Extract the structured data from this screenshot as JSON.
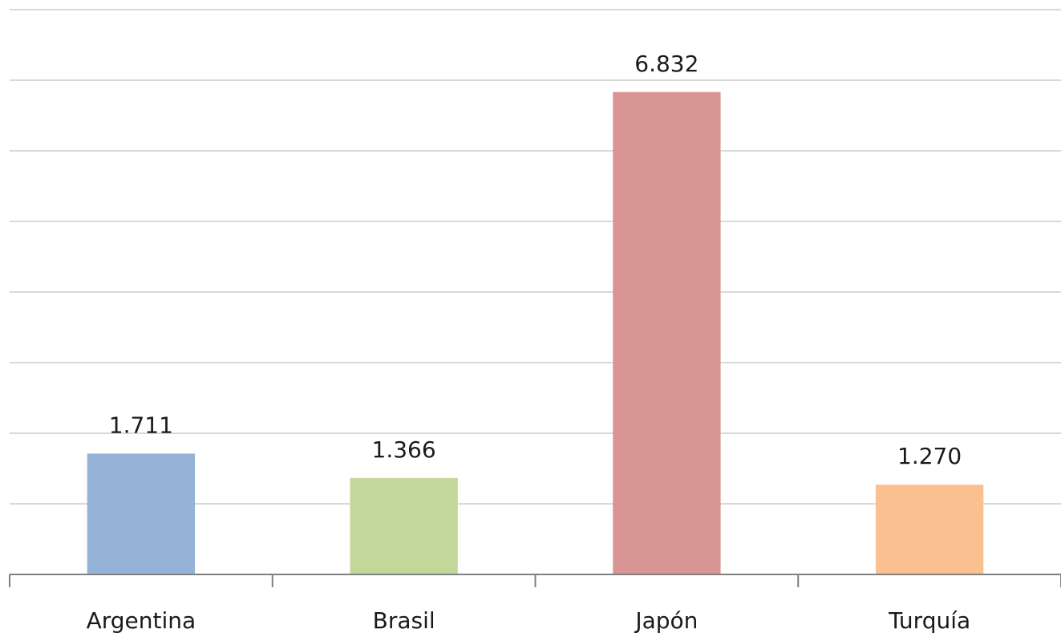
{
  "chart_data": {
    "type": "bar",
    "title": "",
    "xlabel": "",
    "ylabel": "",
    "categories": [
      "Argentina",
      "Brasil",
      "Japón",
      "Turquía"
    ],
    "values": [
      1.711,
      1.366,
      6.832,
      1.27
    ],
    "value_labels": [
      "1.711",
      "1.366",
      "6.832",
      "1.270"
    ],
    "colors": [
      "#95b3d7",
      "#c4d79b",
      "#d99594",
      "#fac090"
    ],
    "ylim": [
      0,
      8
    ],
    "gridlines": true,
    "legend": "none"
  }
}
